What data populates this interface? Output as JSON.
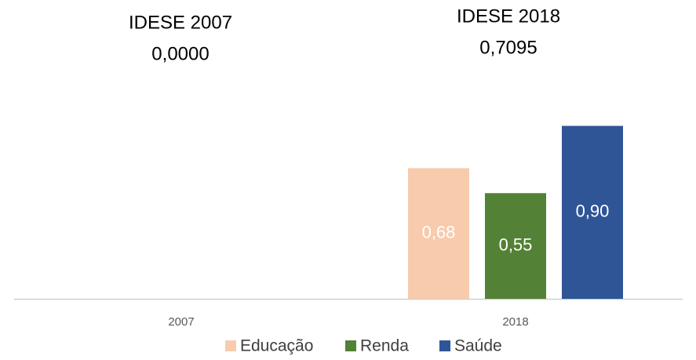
{
  "chart_data": {
    "type": "bar",
    "annotations": [
      "IDESE 2007",
      "0,0000",
      "IDESE 2018",
      "0,7095"
    ],
    "categories": [
      "2007",
      "2018"
    ],
    "series": [
      {
        "name": "Educação",
        "color": "#f8cbad",
        "values": [
          null,
          0.68
        ],
        "value_labels": [
          null,
          "0,68"
        ]
      },
      {
        "name": "Renda",
        "color": "#538135",
        "values": [
          null,
          0.55
        ],
        "value_labels": [
          null,
          "0,55"
        ]
      },
      {
        "name": "Saúde",
        "color": "#2f5597",
        "values": [
          null,
          0.9
        ],
        "value_labels": [
          null,
          "0,90"
        ]
      }
    ],
    "ylim": [
      0,
      1
    ],
    "legend": "bottom"
  }
}
